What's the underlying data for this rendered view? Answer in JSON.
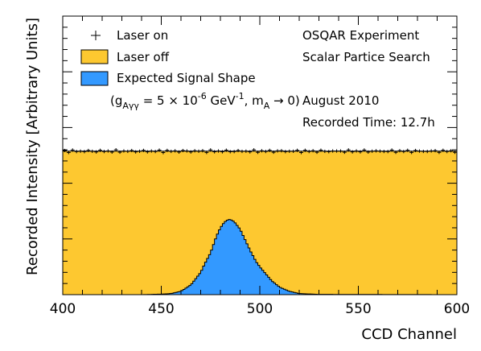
{
  "chart_data": {
    "type": "area",
    "xlabel": "CCD Channel",
    "ylabel": "Recorded Intensity [Arbitrary Units]",
    "xlim": [
      400,
      600
    ],
    "x_ticks": [
      400,
      450,
      500,
      550,
      600
    ],
    "x_tick_labels": [
      "400",
      "450",
      "500",
      "550",
      "600"
    ],
    "ylim": [
      0,
      1.0
    ],
    "grid": false,
    "legend_position": "top-left",
    "legend": [
      {
        "label": "Laser on",
        "marker": "cross"
      },
      {
        "label": "Laser off",
        "marker": "fill",
        "color": "#fdc830"
      },
      {
        "label": "Expected Signal Shape",
        "marker": "fill",
        "color": "#3399ff"
      }
    ],
    "legend_note": {
      "prefix": "(g",
      "sub1": "Aγγ",
      "mid1": " = 5 × 10",
      "sup1": "-6",
      "mid2": " GeV",
      "sup2": "-1",
      "mid3": ", m",
      "sub2": "A",
      "suffix": " → 0)"
    },
    "annotations": [
      "OSQAR Experiment",
      "Scalar Partice Search",
      "August 2010",
      "Recorded Time: 12.7h"
    ],
    "series": [
      {
        "name": "Laser off",
        "kind": "filled-histogram",
        "color": "#fdc830",
        "level": 0.515
      },
      {
        "name": "Laser on",
        "kind": "points-with-errors",
        "level": 0.515,
        "error": 0.012
      },
      {
        "name": "Expected Signal Shape",
        "kind": "filled-histogram",
        "color": "#3399ff",
        "x": [
          400,
          440,
          450,
          455,
          460,
          465,
          470,
          472,
          475,
          478,
          480,
          482,
          484,
          485,
          487,
          490,
          492,
          495,
          498,
          500,
          503,
          506,
          510,
          515,
          520,
          530,
          600
        ],
        "values": [
          0.0,
          0.0,
          0.002,
          0.004,
          0.012,
          0.035,
          0.08,
          0.11,
          0.15,
          0.21,
          0.24,
          0.26,
          0.27,
          0.27,
          0.262,
          0.235,
          0.205,
          0.16,
          0.12,
          0.1,
          0.075,
          0.05,
          0.027,
          0.012,
          0.004,
          0.001,
          0.0
        ]
      }
    ]
  }
}
